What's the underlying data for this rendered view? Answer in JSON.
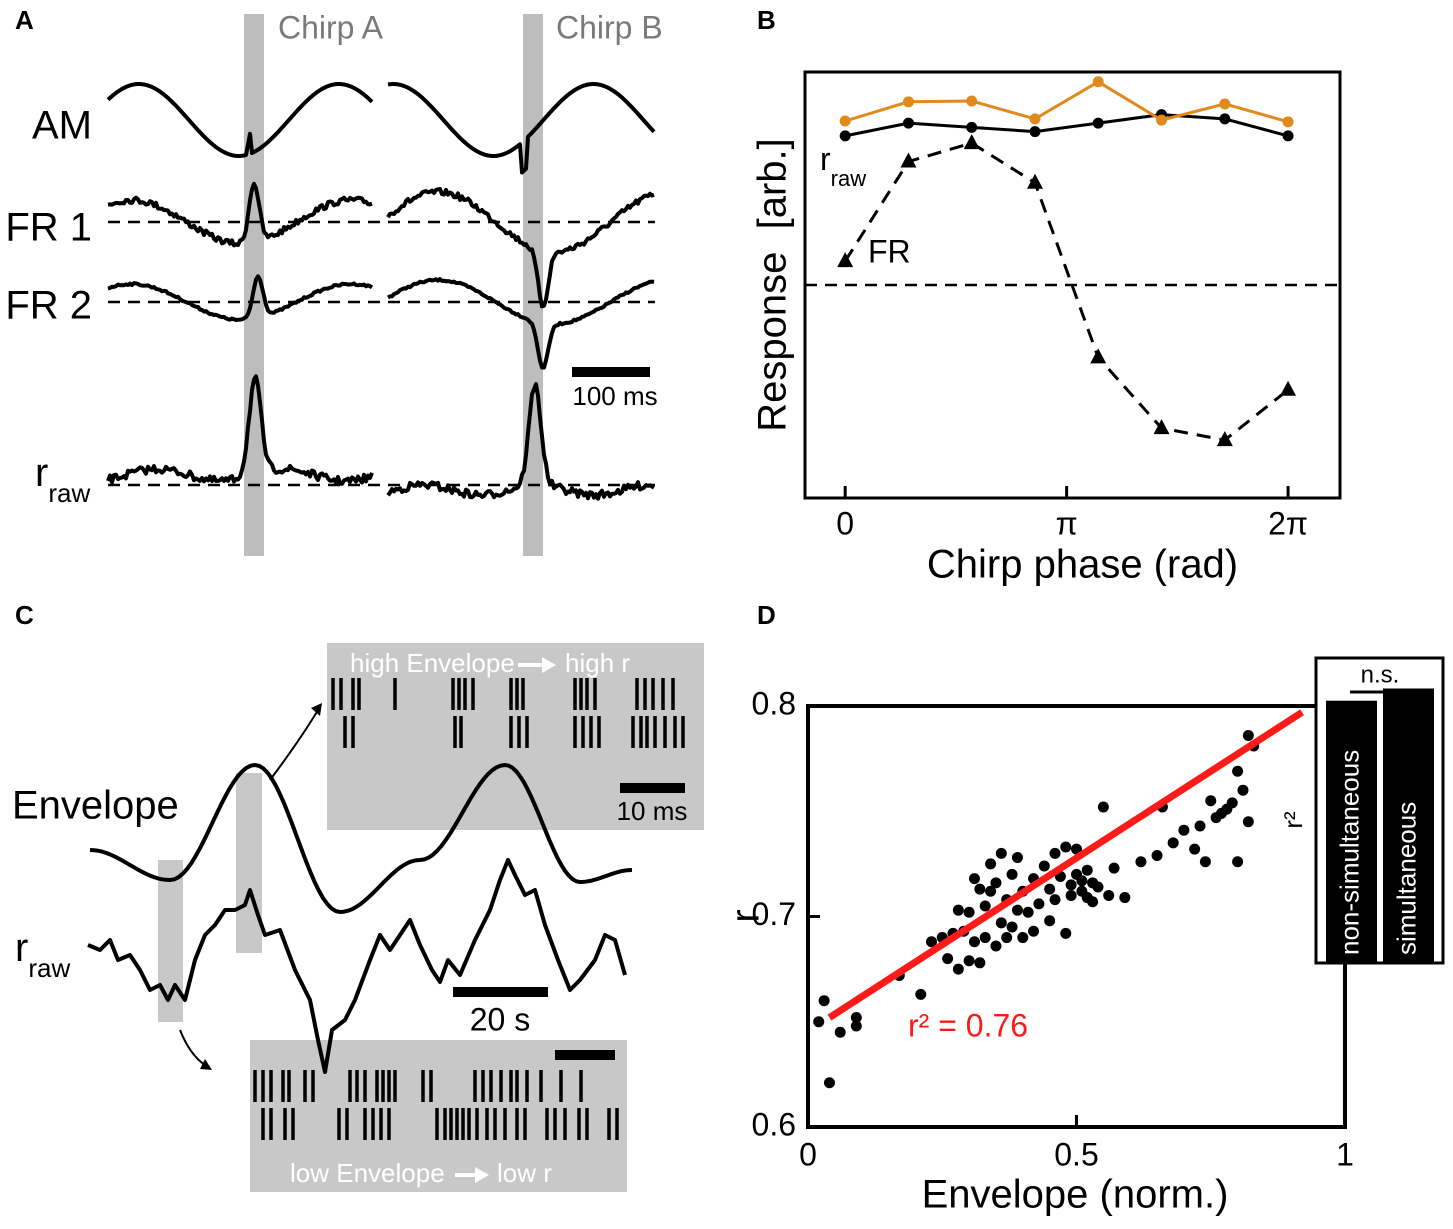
{
  "figure": {
    "panel_labels": [
      "A",
      "B",
      "C",
      "D"
    ],
    "panel_a": {
      "chirps": [
        "Chirp A",
        "Chirp B"
      ],
      "traces": [
        "AM",
        "FR 1",
        "FR 2"
      ],
      "r": "r",
      "r_sub": "raw",
      "scale_bar": "100 ms"
    },
    "panel_c": {
      "envelope": "Envelope",
      "r": "r",
      "r_sub": "raw",
      "scale_bar": "20 s",
      "inset_scale_bar": "10 ms",
      "high_env": "high Envelope",
      "high_r": "high r",
      "low_env": "low Envelope",
      "low_r": "low r"
    }
  },
  "chart_data": [
    {
      "type": "line",
      "ylabel": "Response  [arb.]",
      "xlabel": "Chirp phase (rad)",
      "x": [
        0,
        0.898,
        1.795,
        2.693,
        3.59,
        4.488,
        5.386,
        6.283
      ],
      "xlim": [
        -0.57,
        7.02
      ],
      "xticks": [
        0,
        {
          "value": 3.1416,
          "label": "π"
        },
        {
          "value": 6.2832,
          "label": "2π"
        }
      ],
      "ylim": [
        0,
        100
      ],
      "reference_line": 50,
      "series": [
        {
          "name": "r",
          "name_sub": "raw",
          "color": "#000000",
          "marker": "circle",
          "values": [
            85,
            88,
            87,
            86,
            88,
            90,
            89,
            85
          ]
        },
        {
          "color": "#e08a1e",
          "marker": "circle",
          "values": [
            88.5,
            93,
            93.2,
            89,
            97.7,
            88.7,
            92.5,
            88.3
          ]
        },
        {
          "name": "FR",
          "color": "#000000",
          "marker": "triangle",
          "dashed": true,
          "values": [
            55.6,
            79,
            83.3,
            74,
            33,
            16.4,
            13.6,
            25.4
          ]
        }
      ]
    },
    {
      "type": "scatter",
      "xlabel": "Envelope (norm.)",
      "ylabel": "r",
      "xlim": [
        0,
        1
      ],
      "ylim": [
        0.6,
        0.8
      ],
      "xticks": [
        0,
        0.5,
        1
      ],
      "yticks": [
        0.6,
        0.7,
        0.8
      ],
      "color": "#000000",
      "x": [
        0.03,
        0.02,
        0.06,
        0.04,
        0.09,
        0.09,
        0.17,
        0.21,
        0.23,
        0.25,
        0.26,
        0.27,
        0.28,
        0.28,
        0.29,
        0.3,
        0.3,
        0.31,
        0.31,
        0.32,
        0.32,
        0.33,
        0.33,
        0.34,
        0.34,
        0.35,
        0.35,
        0.36,
        0.36,
        0.37,
        0.37,
        0.38,
        0.38,
        0.39,
        0.39,
        0.4,
        0.4,
        0.41,
        0.42,
        0.42,
        0.43,
        0.44,
        0.45,
        0.45,
        0.46,
        0.46,
        0.47,
        0.48,
        0.48,
        0.49,
        0.49,
        0.5,
        0.5,
        0.51,
        0.51,
        0.52,
        0.52,
        0.53,
        0.53,
        0.54,
        0.55,
        0.56,
        0.57,
        0.59,
        0.62,
        0.65,
        0.66,
        0.68,
        0.7,
        0.72,
        0.73,
        0.75,
        0.76,
        0.77,
        0.78,
        0.79,
        0.8,
        0.81,
        0.82,
        0.82,
        0.83,
        0.8,
        0.74
      ],
      "y": [
        0.66,
        0.65,
        0.645,
        0.621,
        0.648,
        0.652,
        0.672,
        0.663,
        0.688,
        0.69,
        0.68,
        0.692,
        0.675,
        0.703,
        0.693,
        0.679,
        0.702,
        0.688,
        0.718,
        0.678,
        0.713,
        0.705,
        0.69,
        0.725,
        0.712,
        0.686,
        0.716,
        0.697,
        0.73,
        0.69,
        0.708,
        0.72,
        0.695,
        0.728,
        0.703,
        0.69,
        0.712,
        0.702,
        0.718,
        0.693,
        0.706,
        0.724,
        0.713,
        0.698,
        0.73,
        0.708,
        0.719,
        0.692,
        0.733,
        0.715,
        0.71,
        0.72,
        0.732,
        0.712,
        0.717,
        0.709,
        0.722,
        0.716,
        0.707,
        0.714,
        0.752,
        0.71,
        0.723,
        0.709,
        0.726,
        0.729,
        0.752,
        0.735,
        0.741,
        0.732,
        0.743,
        0.755,
        0.747,
        0.749,
        0.751,
        0.754,
        0.769,
        0.76,
        0.745,
        0.786,
        0.781,
        0.726,
        0.726
      ],
      "fit": {
        "x": [
          0.04,
          0.92
        ],
        "y": [
          0.652,
          0.797
        ],
        "color": "#ff1a1a",
        "label": "r² = 0.76"
      }
    },
    {
      "type": "bar",
      "ylabel": "r²",
      "annotation": "n.s.",
      "categories": [
        "non-simultaneous",
        "simultaneous"
      ],
      "values": [
        0.86,
        0.9
      ],
      "ylim": [
        0,
        1
      ],
      "color": "#000000"
    }
  ]
}
